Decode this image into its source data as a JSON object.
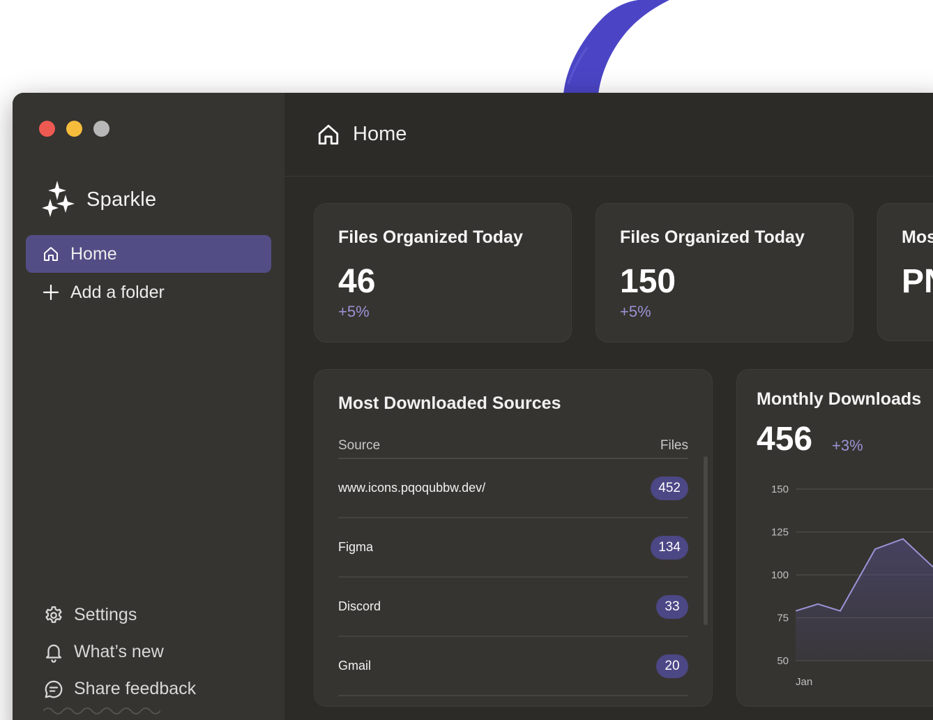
{
  "window": {
    "traffic_lights": [
      "close",
      "minimize",
      "zoom"
    ]
  },
  "sidebar": {
    "brand": {
      "name": "Sparkle",
      "icon": "sparkles-icon"
    },
    "nav": [
      {
        "label": "Home",
        "icon": "home-icon",
        "active": true
      },
      {
        "label": "Add a folder",
        "icon": "plus-icon",
        "active": false
      }
    ],
    "bottom": [
      {
        "label": "Settings",
        "icon": "gear-icon"
      },
      {
        "label": "What’s new",
        "icon": "bell-icon"
      },
      {
        "label": "Share feedback",
        "icon": "chat-bubble-icon"
      }
    ]
  },
  "header": {
    "title": "Home",
    "icon": "home-icon"
  },
  "stats": [
    {
      "title": "Files Organized Today",
      "value": "46",
      "delta": "+5%"
    },
    {
      "title": "Files Organized Today",
      "value": "150",
      "delta": "+5%"
    },
    {
      "title": "Mos",
      "value": "PN"
    }
  ],
  "sources": {
    "title": "Most Downloaded Sources",
    "columns": {
      "source": "Source",
      "files": "Files"
    },
    "rows": [
      {
        "name": "www.icons.pqoqubbw.dev/",
        "count": "452"
      },
      {
        "name": "Figma",
        "count": "134"
      },
      {
        "name": "Discord",
        "count": "33"
      },
      {
        "name": "Gmail",
        "count": "20"
      }
    ]
  },
  "monthly": {
    "title": "Monthly Downloads",
    "value": "456",
    "delta": "+3%"
  },
  "chart_data": {
    "type": "area",
    "title": "Monthly Downloads",
    "yticks": [
      "150",
      "125",
      "100",
      "75",
      "50"
    ],
    "ylim": [
      50,
      150
    ],
    "xlabel_first": "Jan",
    "series": [
      {
        "values": [
          79,
          83,
          79,
          115,
          121,
          105
        ]
      }
    ],
    "grid": true,
    "colors": {
      "line": "#9a93d6",
      "fill": "#534d86"
    }
  },
  "colors": {
    "accent": "#534d86",
    "badge": "#4c4785",
    "delta": "#9a93d6",
    "brush": "#4b45c6"
  }
}
